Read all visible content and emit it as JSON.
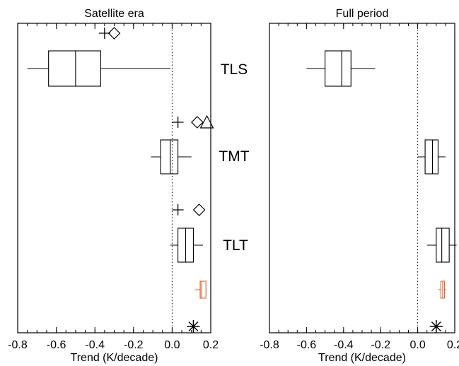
{
  "colors": {
    "black": "#000000",
    "highlight": "#e8602c"
  },
  "chart_data": {
    "type": "boxplot",
    "layer_labels": [
      "TLS",
      "TMT",
      "TLT"
    ],
    "xlabel": "Trend (K/decade)",
    "xlim": [
      -0.8,
      0.2
    ],
    "xticks": [
      -0.8,
      -0.6,
      -0.4,
      -0.2,
      0.0,
      0.2
    ],
    "xtick_labels": [
      "-0.8",
      "-0.6",
      "-0.4",
      "-0.2",
      "0.0",
      "0.2"
    ],
    "reference_line_x": 0.0,
    "panels": [
      {
        "title": "Satellite era",
        "boxes": [
          {
            "layer": "TLS",
            "whisker_low": -0.75,
            "q1": -0.64,
            "median": -0.5,
            "q3": -0.37,
            "whisker_high": -0.01
          },
          {
            "layer": "TMT",
            "whisker_low": -0.11,
            "q1": -0.06,
            "median": -0.01,
            "q3": 0.03,
            "whisker_high": 0.1
          },
          {
            "layer": "TLT",
            "whisker_low": -0.01,
            "q1": 0.03,
            "median": 0.07,
            "q3": 0.11,
            "whisker_high": 0.16
          },
          {
            "layer": "",
            "color": "highlight",
            "whisker_low": 0.12,
            "q1": 0.145,
            "median": 0.15,
            "q3": 0.175,
            "whisker_high": 0.18
          }
        ],
        "markers": [
          {
            "layer": "TLS",
            "symbol": "plus",
            "x": -0.35
          },
          {
            "layer": "TLS",
            "symbol": "diamond",
            "x": -0.3
          },
          {
            "layer": "TMT",
            "symbol": "plus",
            "x": 0.03
          },
          {
            "layer": "TMT",
            "symbol": "diamond",
            "x": 0.13
          },
          {
            "layer": "TMT",
            "symbol": "triangle",
            "x": 0.18
          },
          {
            "layer": "TLT",
            "symbol": "plus",
            "x": 0.03
          },
          {
            "layer": "TLT",
            "symbol": "diamond",
            "x": 0.14
          },
          {
            "layer": "",
            "symbol": "asterisk",
            "x": 0.11
          }
        ]
      },
      {
        "title": "Full period",
        "boxes": [
          {
            "layer": "TLS",
            "whisker_low": -0.6,
            "q1": -0.5,
            "median": -0.41,
            "q3": -0.36,
            "whisker_high": -0.23
          },
          {
            "layer": "TMT",
            "whisker_low": 0.0,
            "q1": 0.04,
            "median": 0.08,
            "q3": 0.11,
            "whisker_high": 0.15
          },
          {
            "layer": "TLT",
            "whisker_low": 0.05,
            "q1": 0.1,
            "median": 0.13,
            "q3": 0.17,
            "whisker_high": 0.21
          },
          {
            "layer": "",
            "color": "highlight",
            "whisker_low": 0.11,
            "q1": 0.125,
            "median": 0.135,
            "q3": 0.145,
            "whisker_high": 0.155
          }
        ],
        "markers": [
          {
            "layer": "",
            "symbol": "asterisk",
            "x": 0.1
          }
        ]
      }
    ]
  }
}
